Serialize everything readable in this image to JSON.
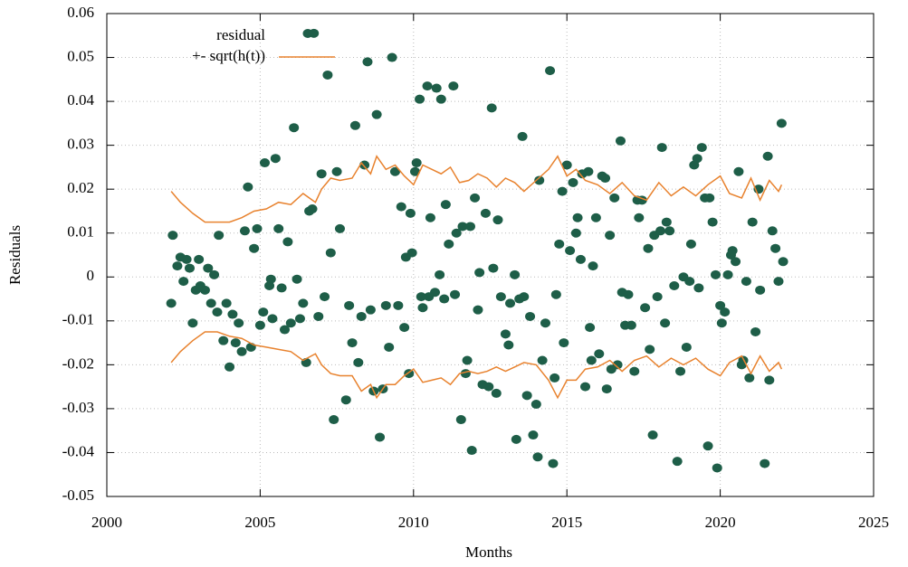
{
  "chart_data": {
    "type": "scatter",
    "xlabel": "Months",
    "ylabel": "Residuals",
    "xlim": [
      2000,
      2025
    ],
    "xticks": [
      2000,
      2005,
      2010,
      2015,
      2020,
      2025
    ],
    "ylim": [
      -0.05,
      0.06
    ],
    "yticks": [
      -0.05,
      -0.04,
      -0.03,
      -0.02,
      -0.01,
      0,
      0.01,
      0.02,
      0.03,
      0.04,
      0.05,
      0.06
    ],
    "grid": true,
    "legend": "top-left",
    "series": [
      {
        "name": "residual",
        "type": "scatter",
        "color": "#1e5e48",
        "x": [
          2002.1,
          2002.15,
          2002.3,
          2002.4,
          2002.5,
          2002.6,
          2002.7,
          2002.8,
          2002.9,
          2003.0,
          2003.05,
          2003.2,
          2003.3,
          2003.4,
          2003.5,
          2003.6,
          2003.65,
          2003.8,
          2003.9,
          2004.0,
          2004.1,
          2004.2,
          2004.3,
          2004.4,
          2004.5,
          2004.6,
          2004.7,
          2004.8,
          2004.9,
          2005.0,
          2005.1,
          2005.15,
          2005.3,
          2005.35,
          2005.4,
          2005.5,
          2005.6,
          2005.7,
          2005.8,
          2005.9,
          2006.0,
          2006.1,
          2006.2,
          2006.3,
          2006.4,
          2006.5,
          2006.6,
          2006.7,
          2006.75,
          2006.9,
          2007.0,
          2007.1,
          2007.2,
          2007.3,
          2007.4,
          2007.5,
          2007.6,
          2007.8,
          2007.9,
          2008.0,
          2008.1,
          2008.2,
          2008.3,
          2008.4,
          2008.5,
          2008.6,
          2008.7,
          2008.8,
          2008.9,
          2009.0,
          2009.1,
          2009.2,
          2009.3,
          2009.4,
          2009.5,
          2009.6,
          2009.7,
          2009.75,
          2009.85,
          2009.9,
          2009.95,
          2010.05,
          2010.1,
          2010.2,
          2010.25,
          2010.3,
          2010.45,
          2010.5,
          2010.55,
          2010.7,
          2010.75,
          2010.85,
          2010.9,
          2011.0,
          2011.05,
          2011.15,
          2011.3,
          2011.35,
          2011.4,
          2011.55,
          2011.6,
          2011.7,
          2011.75,
          2011.85,
          2011.9,
          2012.0,
          2012.1,
          2012.15,
          2012.25,
          2012.35,
          2012.45,
          2012.55,
          2012.6,
          2012.7,
          2012.75,
          2012.85,
          2013.0,
          2013.1,
          2013.15,
          2013.3,
          2013.35,
          2013.45,
          2013.55,
          2013.6,
          2013.7,
          2013.8,
          2013.9,
          2014.0,
          2014.05,
          2014.1,
          2014.2,
          2014.3,
          2014.45,
          2014.55,
          2014.6,
          2014.65,
          2014.75,
          2014.85,
          2014.9,
          2015.0,
          2015.1,
          2015.2,
          2015.3,
          2015.35,
          2015.45,
          2015.5,
          2015.6,
          2015.7,
          2015.75,
          2015.8,
          2015.85,
          2015.95,
          2016.05,
          2016.15,
          2016.25,
          2016.3,
          2016.4,
          2016.45,
          2016.55,
          2016.65,
          2016.75,
          2016.8,
          2016.9,
          2017.0,
          2017.1,
          2017.2,
          2017.3,
          2017.35,
          2017.45,
          2017.55,
          2017.65,
          2017.7,
          2017.8,
          2017.85,
          2017.95,
          2018.05,
          2018.1,
          2018.2,
          2018.25,
          2018.35,
          2018.5,
          2018.6,
          2018.7,
          2018.8,
          2018.9,
          2019.0,
          2019.05,
          2019.15,
          2019.25,
          2019.3,
          2019.4,
          2019.5,
          2019.6,
          2019.65,
          2019.75,
          2019.85,
          2019.9,
          2020.0,
          2020.05,
          2020.15,
          2020.25,
          2020.35,
          2020.4,
          2020.5,
          2020.6,
          2020.7,
          2020.75,
          2020.85,
          2020.95,
          2021.05,
          2021.15,
          2021.25,
          2021.3,
          2021.45,
          2021.55,
          2021.6,
          2021.7,
          2021.8,
          2021.9,
          2022.0,
          2022.05
        ],
        "values": [
          -0.006,
          0.0095,
          0.0025,
          0.0045,
          -0.001,
          0.004,
          0.002,
          -0.0105,
          -0.003,
          0.004,
          -0.002,
          -0.003,
          0.002,
          -0.006,
          0.0005,
          -0.008,
          0.0095,
          -0.0145,
          -0.006,
          -0.0205,
          -0.0085,
          -0.015,
          -0.0105,
          -0.017,
          0.0105,
          0.0205,
          -0.016,
          0.0065,
          0.011,
          -0.011,
          -0.008,
          0.026,
          -0.002,
          -0.0005,
          -0.0095,
          0.027,
          0.011,
          -0.0025,
          -0.012,
          0.008,
          -0.0105,
          0.034,
          -0.0005,
          -0.0095,
          -0.006,
          -0.0195,
          0.015,
          0.0155,
          0.0555,
          -0.009,
          0.0235,
          -0.0045,
          0.046,
          0.0055,
          -0.0325,
          0.024,
          0.011,
          -0.028,
          -0.0065,
          -0.015,
          0.0345,
          -0.0195,
          -0.009,
          0.0255,
          0.049,
          -0.0075,
          -0.026,
          0.037,
          -0.0365,
          -0.0255,
          -0.0065,
          -0.016,
          0.05,
          0.024,
          -0.0065,
          0.016,
          -0.0115,
          0.0045,
          -0.022,
          0.0145,
          0.0055,
          0.024,
          0.026,
          0.0405,
          -0.0045,
          -0.007,
          0.0435,
          -0.0045,
          0.0135,
          -0.0035,
          0.043,
          0.0005,
          0.0405,
          -0.005,
          0.0165,
          0.0075,
          0.0435,
          -0.004,
          0.01,
          -0.0325,
          0.0115,
          -0.022,
          -0.019,
          0.0115,
          -0.0395,
          0.018,
          -0.0075,
          0.001,
          -0.0245,
          0.0145,
          -0.025,
          0.0385,
          0.002,
          -0.0265,
          0.013,
          -0.0045,
          -0.013,
          -0.0155,
          -0.006,
          0.0005,
          -0.037,
          -0.005,
          0.032,
          -0.0045,
          -0.027,
          -0.009,
          -0.036,
          -0.029,
          -0.041,
          0.022,
          -0.019,
          -0.0105,
          0.047,
          -0.0425,
          -0.023,
          -0.004,
          0.0075,
          0.0195,
          -0.015,
          0.0255,
          0.006,
          0.0215,
          0.01,
          0.0135,
          0.004,
          0.0235,
          -0.025,
          0.024,
          -0.0115,
          -0.019,
          0.0025,
          0.0135,
          -0.0175,
          0.023,
          0.0225,
          -0.0255,
          0.0095,
          -0.021,
          0.018,
          -0.02,
          0.031,
          -0.0035,
          -0.011,
          -0.004,
          -0.011,
          -0.0215,
          0.0175,
          0.0135,
          0.0175,
          -0.007,
          0.0065,
          -0.0165,
          -0.036,
          0.0095,
          -0.0045,
          0.0105,
          0.0295,
          -0.0105,
          0.0125,
          0.0105,
          -0.002,
          -0.042,
          -0.0215,
          0,
          -0.016,
          -0.001,
          0.0075,
          0.0255,
          0.027,
          -0.0025,
          0.0295,
          0.018,
          -0.0385,
          0.018,
          0.0125,
          0.0005,
          -0.0435,
          -0.0065,
          -0.0105,
          -0.008,
          0.0005,
          0.005,
          0.006,
          0.0035,
          0.024,
          -0.02,
          -0.019,
          -0.001,
          -0.023,
          0.0125,
          -0.0125,
          0.02,
          -0.003,
          -0.0425,
          0.0275,
          -0.0235,
          0.0105,
          0.0065,
          -0.001,
          0.035,
          0.0035
        ]
      },
      {
        "name": "+- sqrt(h(t))",
        "type": "line",
        "color": "#e8822e",
        "x": [
          2002.1,
          2002.4,
          2002.8,
          2003.2,
          2003.6,
          2004.0,
          2004.4,
          2004.8,
          2005.2,
          2005.6,
          2006.0,
          2006.4,
          2006.8,
          2007.0,
          2007.3,
          2007.6,
          2008.0,
          2008.3,
          2008.6,
          2008.8,
          2009.1,
          2009.4,
          2009.7,
          2010.0,
          2010.3,
          2010.6,
          2010.9,
          2011.2,
          2011.5,
          2011.8,
          2012.1,
          2012.4,
          2012.7,
          2013.0,
          2013.3,
          2013.6,
          2014.0,
          2014.4,
          2014.7,
          2015.0,
          2015.3,
          2015.6,
          2016.0,
          2016.4,
          2016.8,
          2017.2,
          2017.6,
          2018.0,
          2018.4,
          2018.8,
          2019.2,
          2019.6,
          2020.0,
          2020.3,
          2020.7,
          2021.0,
          2021.3,
          2021.6,
          2021.9,
          2022.0
        ],
        "values": [
          0.0195,
          0.017,
          0.0145,
          0.0125,
          0.0125,
          0.0125,
          0.0135,
          0.015,
          0.0155,
          0.017,
          0.0165,
          0.019,
          0.017,
          0.02,
          0.0225,
          0.022,
          0.0225,
          0.026,
          0.0235,
          0.0275,
          0.0245,
          0.0255,
          0.023,
          0.021,
          0.0255,
          0.0245,
          0.0235,
          0.025,
          0.0215,
          0.022,
          0.0235,
          0.0225,
          0.0205,
          0.0225,
          0.0215,
          0.0195,
          0.022,
          0.0245,
          0.0275,
          0.023,
          0.0245,
          0.022,
          0.021,
          0.019,
          0.0215,
          0.0185,
          0.0175,
          0.0215,
          0.0185,
          0.0205,
          0.0185,
          0.021,
          0.023,
          0.019,
          0.018,
          0.0225,
          0.0175,
          0.022,
          0.0195,
          0.021
        ],
        "lower": [
          -0.0195,
          -0.017,
          -0.0145,
          -0.0125,
          -0.0125,
          -0.0135,
          -0.014,
          -0.0155,
          -0.016,
          -0.0165,
          -0.017,
          -0.019,
          -0.0175,
          -0.02,
          -0.022,
          -0.0225,
          -0.0225,
          -0.026,
          -0.0245,
          -0.0275,
          -0.0245,
          -0.0245,
          -0.0225,
          -0.021,
          -0.024,
          -0.0235,
          -0.023,
          -0.0245,
          -0.022,
          -0.0215,
          -0.022,
          -0.0215,
          -0.0205,
          -0.0215,
          -0.0205,
          -0.0195,
          -0.02,
          -0.0235,
          -0.0275,
          -0.0235,
          -0.0235,
          -0.021,
          -0.0205,
          -0.019,
          -0.0215,
          -0.019,
          -0.018,
          -0.0205,
          -0.0185,
          -0.02,
          -0.0185,
          -0.021,
          -0.0225,
          -0.0195,
          -0.018,
          -0.022,
          -0.018,
          -0.0215,
          -0.0195,
          -0.021
        ]
      }
    ]
  }
}
